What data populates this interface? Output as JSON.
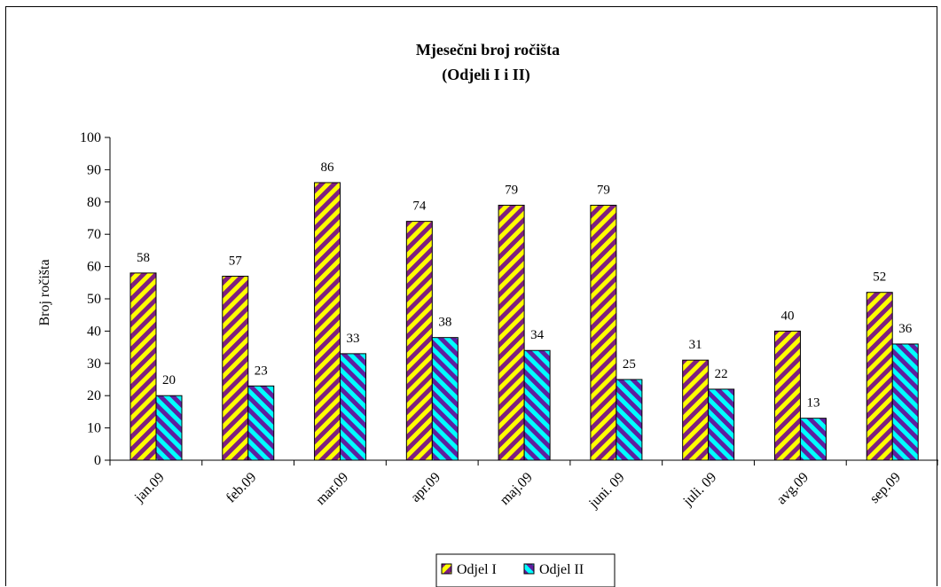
{
  "chart_data": {
    "type": "bar",
    "title": "Mjesečni broj ročišta",
    "subtitle": "(Odjeli I i II)",
    "xlabel": "",
    "ylabel": "Broj ročišta",
    "ylim": [
      0,
      100
    ],
    "yticks": [
      0,
      10,
      20,
      30,
      40,
      50,
      60,
      70,
      80,
      90,
      100
    ],
    "grid": false,
    "legend_position": "bottom",
    "categories": [
      "jan.09",
      "feb.09",
      "mar.09",
      "apr.09",
      "maj.09",
      "juni. 09",
      "juli. 09",
      "avg.09",
      "sep.09"
    ],
    "series": [
      {
        "name": "Odjel I",
        "values": [
          58,
          57,
          86,
          74,
          79,
          79,
          31,
          40,
          52
        ],
        "color_a": "#FFFF00",
        "color_b": "#7F1F7F"
      },
      {
        "name": "Odjel II",
        "values": [
          20,
          23,
          33,
          38,
          34,
          25,
          22,
          13,
          36
        ],
        "color_a": "#00FFFF",
        "color_b": "#5F1F9F"
      }
    ]
  }
}
